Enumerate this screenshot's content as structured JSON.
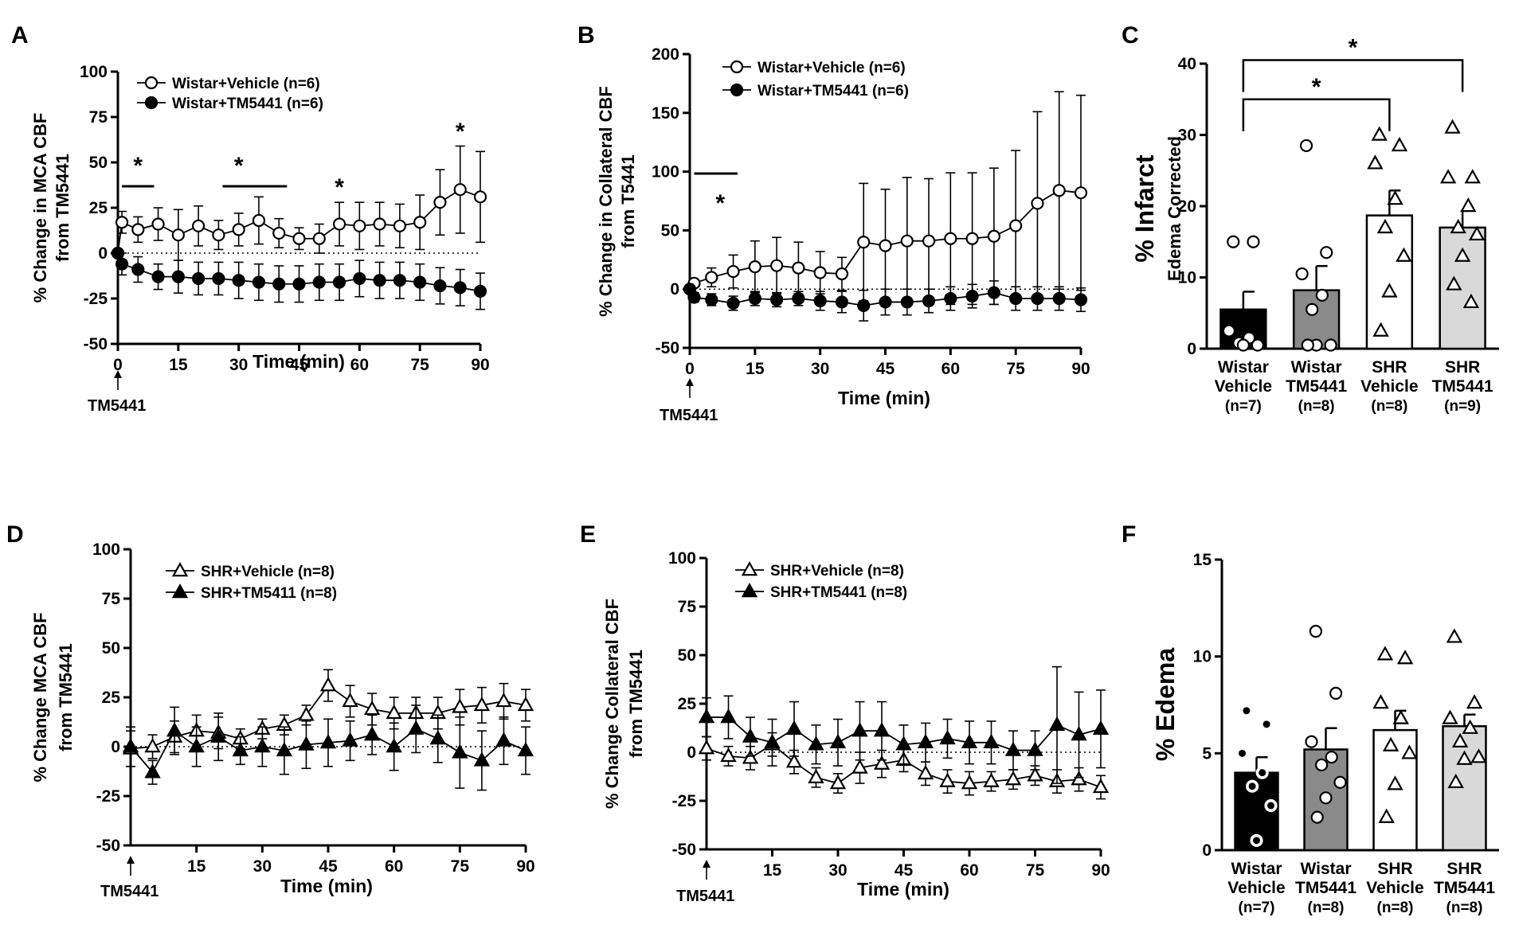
{
  "chart_data": [
    {
      "panel": "A",
      "type": "line",
      "ylabel": [
        "% Change in MCA CBF",
        "from TM5441"
      ],
      "xlabel": "Time (min)",
      "marker_label": "TM5441",
      "xlim": [
        0,
        90
      ],
      "ylim": [
        -50,
        100
      ],
      "xticks": [
        0,
        15,
        30,
        45,
        60,
        75,
        90
      ],
      "yticks": [
        -50,
        -25,
        0,
        25,
        50,
        75,
        100
      ],
      "significance_bars": [
        [
          1,
          9
        ],
        [
          26,
          42
        ]
      ],
      "significance_stars": [
        5,
        30,
        55,
        85
      ],
      "series": [
        {
          "name": "Wistar+Vehicle (n=6)",
          "marker": "circle-open",
          "x": [
            0,
            1,
            5,
            10,
            15,
            20,
            25,
            30,
            35,
            40,
            45,
            50,
            55,
            60,
            65,
            70,
            75,
            80,
            85,
            90
          ],
          "y": [
            0,
            17,
            13,
            16,
            10,
            15,
            10,
            13,
            18,
            11,
            8,
            8,
            16,
            15,
            16,
            15,
            17,
            28,
            35,
            31
          ],
          "err": [
            0,
            6,
            7,
            9,
            14,
            11,
            8,
            9,
            13,
            8,
            6,
            8,
            12,
            13,
            12,
            12,
            15,
            18,
            24,
            25
          ]
        },
        {
          "name": "Wistar+TM5441 (n=6)",
          "marker": "circle-filled",
          "x": [
            0,
            1,
            5,
            10,
            15,
            20,
            25,
            30,
            35,
            40,
            45,
            50,
            55,
            60,
            65,
            70,
            75,
            80,
            85,
            90
          ],
          "y": [
            0,
            -6,
            -9,
            -13,
            -13,
            -14,
            -14,
            -15,
            -16,
            -17,
            -17,
            -16,
            -16,
            -14,
            -15,
            -15,
            -16,
            -18,
            -19,
            -21
          ],
          "err": [
            0,
            6,
            7,
            7,
            9,
            9,
            9,
            10,
            10,
            10,
            10,
            10,
            10,
            10,
            10,
            10,
            10,
            10,
            10,
            10
          ]
        }
      ]
    },
    {
      "panel": "B",
      "type": "line",
      "ylabel": [
        "% Change in Collateral CBF",
        "from T5441"
      ],
      "xlabel": "Time (min)",
      "marker_label": "TM5441",
      "xlim": [
        0,
        90
      ],
      "ylim": [
        -50,
        200
      ],
      "xticks": [
        0,
        15,
        30,
        45,
        60,
        75,
        90
      ],
      "yticks": [
        -50,
        0,
        50,
        100,
        150,
        200
      ],
      "significance_bars": [
        [
          1,
          11
        ]
      ],
      "significance_stars": [
        7
      ],
      "series": [
        {
          "name": "Wistar+Vehicle (n=6)",
          "marker": "circle-open",
          "x": [
            0,
            1,
            5,
            10,
            15,
            20,
            25,
            30,
            35,
            40,
            45,
            50,
            55,
            60,
            65,
            70,
            75,
            80,
            85,
            90
          ],
          "y": [
            0,
            5,
            10,
            15,
            19,
            20,
            18,
            14,
            13,
            40,
            37,
            41,
            41,
            43,
            43,
            45,
            54,
            73,
            84,
            82
          ],
          "err": [
            0,
            3,
            8,
            14,
            22,
            24,
            22,
            18,
            14,
            50,
            48,
            54,
            53,
            56,
            56,
            58,
            64,
            78,
            84,
            83
          ]
        },
        {
          "name": "Wistar+TM5441 (n=6)",
          "marker": "circle-filled",
          "x": [
            0,
            1,
            5,
            10,
            15,
            20,
            25,
            30,
            35,
            40,
            45,
            50,
            55,
            60,
            65,
            70,
            75,
            80,
            85,
            90
          ],
          "y": [
            0,
            -7,
            -9,
            -12,
            -8,
            -9,
            -8,
            -10,
            -11,
            -14,
            -11,
            -11,
            -10,
            -8,
            -6,
            -3,
            -8,
            -8,
            -8,
            -9
          ],
          "err": [
            0,
            4,
            5,
            6,
            6,
            6,
            6,
            8,
            9,
            13,
            11,
            11,
            10,
            10,
            10,
            10,
            10,
            10,
            10,
            10
          ]
        }
      ]
    },
    {
      "panel": "C",
      "type": "bar",
      "ylabel": [
        "% Infarct",
        "Edema Corrected"
      ],
      "ylim": [
        0,
        40
      ],
      "yticks": [
        0,
        10,
        20,
        30,
        40
      ],
      "categories": [
        [
          "Wistar",
          "Vehicle",
          "(n=7)"
        ],
        [
          "Wistar",
          "TM5441",
          "(n=8)"
        ],
        [
          "SHR",
          "Vehicle",
          "(n=8)"
        ],
        [
          "SHR",
          "TM5441",
          "(n=9)"
        ]
      ],
      "series": [
        {
          "name": "mean",
          "values": [
            5.5,
            8.2,
            18.7,
            17.0
          ],
          "sem": [
            2.5,
            3.4,
            3.5,
            2.6
          ]
        }
      ],
      "points": [
        [
          15,
          15,
          2.5,
          1.5,
          0.8,
          0.5,
          0.5
        ],
        [
          28.5,
          13.5,
          10.5,
          7.5,
          5.5,
          0.5,
          0.5,
          0.5
        ],
        [
          30,
          28.5,
          26,
          21,
          17,
          13,
          8,
          2.5
        ],
        [
          31,
          24,
          24,
          20,
          17,
          16,
          13,
          9,
          6.5
        ]
      ],
      "point_markers": [
        "circle-open",
        "circle-open",
        "triangle-open",
        "triangle-open"
      ],
      "comparisons": [
        {
          "from": 0,
          "to": 2,
          "y": 35,
          "label": "*"
        },
        {
          "from": 0,
          "to": 3,
          "y": 40.5,
          "label": "*"
        }
      ]
    },
    {
      "panel": "D",
      "type": "line",
      "ylabel": [
        "% Change MCA CBF",
        "from TM5441"
      ],
      "xlabel": "Time (min)",
      "marker_label": "TM5441",
      "xlim": [
        0,
        90
      ],
      "ylim": [
        -50,
        100
      ],
      "xticks": [
        15,
        30,
        45,
        60,
        75,
        90
      ],
      "yticks": [
        -50,
        -25,
        0,
        25,
        50,
        75,
        100
      ],
      "series": [
        {
          "name": "SHR+Vehicle (n=8)",
          "marker": "triangle-open",
          "x": [
            0,
            5,
            10,
            15,
            20,
            25,
            30,
            35,
            40,
            45,
            50,
            55,
            60,
            65,
            70,
            75,
            80,
            85,
            90
          ],
          "y": [
            -1,
            0,
            5,
            8,
            7,
            4,
            9,
            11,
            16,
            31,
            23,
            19,
            17,
            17,
            17,
            20,
            21,
            23,
            21
          ],
          "err": [
            9,
            6,
            8,
            8,
            8,
            5,
            5,
            5,
            5,
            8,
            8,
            8,
            8,
            8,
            8,
            9,
            9,
            9,
            8
          ]
        },
        {
          "name": "SHR+TM5411 (n=8)",
          "marker": "triangle-filled",
          "x": [
            0,
            5,
            10,
            15,
            20,
            25,
            30,
            35,
            40,
            45,
            50,
            55,
            60,
            65,
            70,
            75,
            80,
            85,
            90
          ],
          "y": [
            0,
            -13,
            8,
            0,
            5,
            -2,
            0,
            -2,
            1,
            2,
            3,
            6,
            0,
            9,
            4,
            -3,
            -7,
            3,
            -2
          ],
          "err": [
            10,
            6,
            12,
            10,
            12,
            7,
            10,
            12,
            12,
            12,
            10,
            10,
            12,
            12,
            12,
            18,
            15,
            12,
            12
          ]
        }
      ]
    },
    {
      "panel": "E",
      "type": "line",
      "ylabel": [
        "% Change Collateral CBF",
        "from TM5441"
      ],
      "xlabel": "Time (min)",
      "marker_label": "TM5441",
      "xlim": [
        0,
        90
      ],
      "ylim": [
        -50,
        100
      ],
      "xticks": [
        15,
        30,
        45,
        60,
        75,
        90
      ],
      "yticks": [
        -50,
        -25,
        0,
        25,
        50,
        75,
        100
      ],
      "series": [
        {
          "name": "SHR+Vehicle (n=8)",
          "marker": "triangle-open",
          "x": [
            0,
            5,
            10,
            15,
            20,
            25,
            30,
            35,
            40,
            45,
            50,
            55,
            60,
            65,
            70,
            75,
            80,
            85,
            90
          ],
          "y": [
            2,
            -2,
            -3,
            4,
            -5,
            -13,
            -16,
            -8,
            -6,
            -4,
            -11,
            -15,
            -16,
            -15,
            -14,
            -12,
            -15,
            -14,
            -18
          ],
          "err": [
            6,
            5,
            6,
            6,
            6,
            5,
            5,
            8,
            7,
            6,
            6,
            6,
            6,
            5,
            5,
            5,
            6,
            6,
            6
          ]
        },
        {
          "name": "SHR+TM5441 (n=8)",
          "marker": "triangle-filled",
          "x": [
            0,
            5,
            10,
            15,
            20,
            25,
            30,
            35,
            40,
            45,
            50,
            55,
            60,
            65,
            70,
            75,
            80,
            85,
            90
          ],
          "y": [
            18,
            18,
            8,
            5,
            12,
            4,
            5,
            11,
            11,
            4,
            5,
            7,
            5,
            5,
            1,
            1,
            14,
            9,
            12
          ],
          "err": [
            10,
            11,
            10,
            12,
            14,
            10,
            12,
            15,
            15,
            10,
            10,
            10,
            11,
            11,
            10,
            10,
            30,
            22,
            20
          ]
        }
      ]
    },
    {
      "panel": "F",
      "type": "bar",
      "ylabel": [
        "% Edema"
      ],
      "ylim": [
        0,
        15
      ],
      "yticks": [
        0,
        5,
        10,
        15
      ],
      "categories": [
        [
          "Wistar",
          "Vehicle",
          "(n=7)"
        ],
        [
          "Wistar",
          "TM5441",
          "(n=8)"
        ],
        [
          "SHR",
          "Vehicle",
          "(n=8)"
        ],
        [
          "SHR",
          "TM5441",
          "(n=8)"
        ]
      ],
      "series": [
        {
          "name": "mean",
          "values": [
            4.0,
            5.2,
            6.2,
            6.4
          ],
          "sem": [
            0.8,
            1.1,
            1.0,
            0.6
          ]
        }
      ],
      "points": [
        [
          7.2,
          6.5,
          5.0,
          4.0,
          3.3,
          2.3,
          0.5
        ],
        [
          11.3,
          8.1,
          5.6,
          4.8,
          4.4,
          3.5,
          2.7,
          1.7
        ],
        [
          10.1,
          9.9,
          7.6,
          6.8,
          5.4,
          5.0,
          3.4,
          1.7
        ],
        [
          11.0,
          7.6,
          6.8,
          6.3,
          5.6,
          4.8,
          4.7,
          3.5
        ]
      ],
      "point_markers": [
        "circle-filled-white",
        "circle-open",
        "triangle-open",
        "triangle-open"
      ]
    }
  ]
}
